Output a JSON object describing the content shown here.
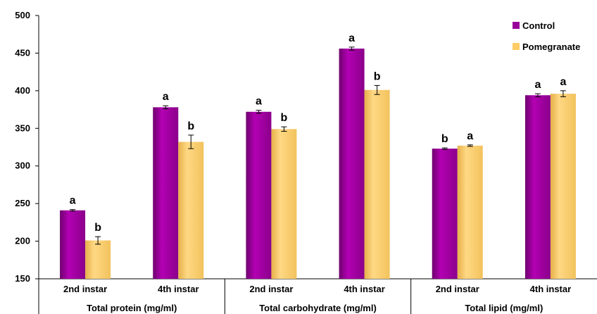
{
  "chart_data": {
    "type": "bar",
    "title": "",
    "ylim": [
      150,
      500
    ],
    "yticks": [
      150,
      200,
      250,
      300,
      350,
      400,
      450,
      500
    ],
    "groups": [
      {
        "label": "Total protein (mg/ml)",
        "categories": [
          "2nd instar",
          "4th instar"
        ]
      },
      {
        "label": "Total carbohydrate (mg/ml)",
        "categories": [
          "2nd instar",
          "4th instar"
        ]
      },
      {
        "label": "Total lipid (mg/ml)",
        "categories": [
          "2nd instar",
          "4th instar"
        ]
      }
    ],
    "series": [
      {
        "name": "Control",
        "color": "#990099",
        "values": [
          241,
          378,
          372,
          456,
          323,
          394
        ],
        "errors": [
          1,
          2,
          2,
          2,
          1,
          2
        ],
        "letters": [
          "a",
          "a",
          "a",
          "a",
          "b",
          "a"
        ]
      },
      {
        "name": "Pomegranate",
        "color": "#FFCC66",
        "values": [
          201,
          332,
          349,
          401,
          327,
          396
        ],
        "errors": [
          5,
          9,
          3,
          6,
          1,
          4
        ],
        "letters": [
          "b",
          "b",
          "b",
          "b",
          "a",
          "a"
        ]
      }
    ],
    "legend_position": "top-right",
    "grid": false
  }
}
